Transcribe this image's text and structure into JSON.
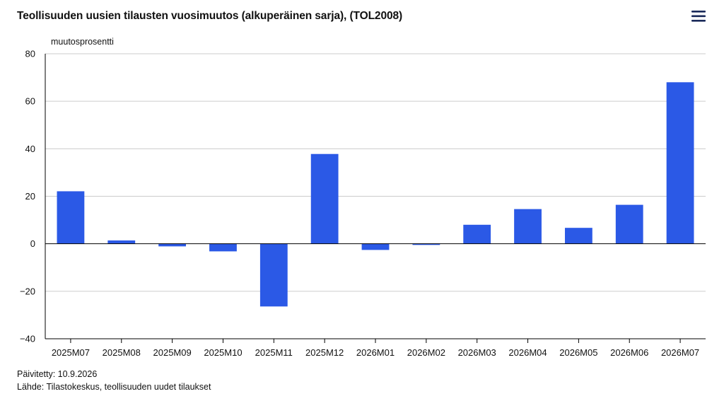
{
  "header": {
    "title": "Teollisuuden uusien tilausten vuosimuutos (alkuperäinen sarja), (TOL2008)"
  },
  "menu": {
    "icon": "hamburger-menu-icon",
    "color": "#1a2a5a"
  },
  "footer": {
    "updated": "Päivitetty: 10.9.2026",
    "source": "Lähde: Tilastokeskus, teollisuuden uudet tilaukset"
  },
  "chart_data": {
    "type": "bar",
    "title": "Teollisuuden uusien tilausten vuosimuutos (alkuperäinen sarja), (TOL2008)",
    "ylabel": "muutosprosentti",
    "xlabel": "",
    "categories": [
      "2025M07",
      "2025M08",
      "2025M09",
      "2025M10",
      "2025M11",
      "2025M12",
      "2026M01",
      "2026M02",
      "2026M03",
      "2026M04",
      "2026M05",
      "2026M06",
      "2026M07"
    ],
    "values": [
      22.1,
      1.4,
      -1.1,
      -3.2,
      -26.4,
      37.8,
      -2.6,
      -0.5,
      8.0,
      14.6,
      6.7,
      16.4,
      68.0
    ],
    "ylim": [
      -40,
      80
    ],
    "yticks": [
      80,
      60,
      40,
      20,
      0,
      -20,
      -40
    ],
    "ytick_labels": [
      "80",
      "60",
      "40",
      "20",
      "0",
      "−20",
      "−40"
    ],
    "grid": true,
    "bar_color": "#2b59e6",
    "grid_color": "#cccccc",
    "zero_line_color": "#000000"
  }
}
